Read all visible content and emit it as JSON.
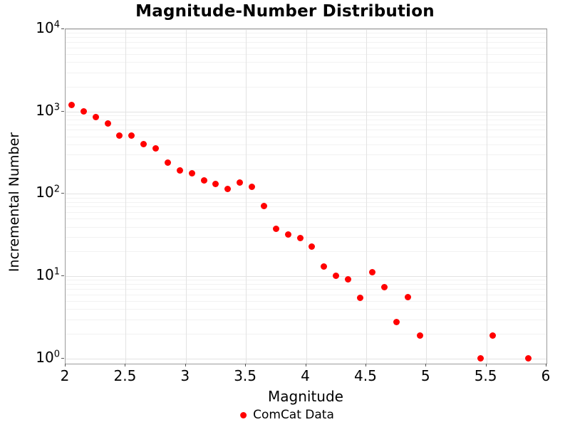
{
  "title": "Magnitude-Number Distribution",
  "legend": {
    "label": "ComCat Data"
  },
  "colors": {
    "marker": "#ff0000",
    "axis_border": "#9b9b9b",
    "grid_major": "#e3e3e3",
    "grid_minor": "#f2f2f2",
    "tick": "#555555",
    "text": "#000000",
    "background": "#ffffff"
  },
  "chart_data": {
    "type": "scatter",
    "title": "Magnitude-Number Distribution",
    "xlabel": "Magnitude",
    "ylabel": "Incremental Number",
    "series": [
      {
        "name": "ComCat Data",
        "marker": "filled-circle",
        "color": "#ff0000",
        "x": [
          2.05,
          2.15,
          2.25,
          2.35,
          2.45,
          2.55,
          2.65,
          2.75,
          2.85,
          2.95,
          3.05,
          3.15,
          3.25,
          3.35,
          3.45,
          3.55,
          3.65,
          3.75,
          3.85,
          3.95,
          4.05,
          4.15,
          4.25,
          4.35,
          4.45,
          4.55,
          4.65,
          4.75,
          4.85,
          4.95,
          5.45,
          5.55,
          5.85
        ],
        "y": [
          1200,
          1000,
          850,
          715,
          515,
          515,
          400,
          355,
          240,
          192,
          178,
          145,
          133,
          115,
          137,
          121,
          71,
          38,
          32,
          29,
          23,
          13,
          10.2,
          9.2,
          5.5,
          11.1,
          7.4,
          2.8,
          5.6,
          1.9,
          1,
          1.9,
          1
        ]
      }
    ],
    "xlim": [
      2,
      6
    ],
    "ylim_log": [
      -0.062,
      4
    ],
    "yscale": "log",
    "x_ticks": [
      2,
      2.5,
      3,
      3.5,
      4,
      4.5,
      5,
      5.5,
      6
    ],
    "x_tick_labels": [
      "2",
      "2.5",
      "3",
      "3.5",
      "4",
      "4.5",
      "5",
      "5.5",
      "6"
    ],
    "x_grid": [
      2.5,
      3,
      3.5,
      4,
      4.5,
      5,
      5.5
    ],
    "y_tick_exponents": [
      0,
      1,
      2,
      3,
      4
    ],
    "y_tick_base": "10",
    "grid": "major+log-minor",
    "legend_position": "bottom-center"
  }
}
